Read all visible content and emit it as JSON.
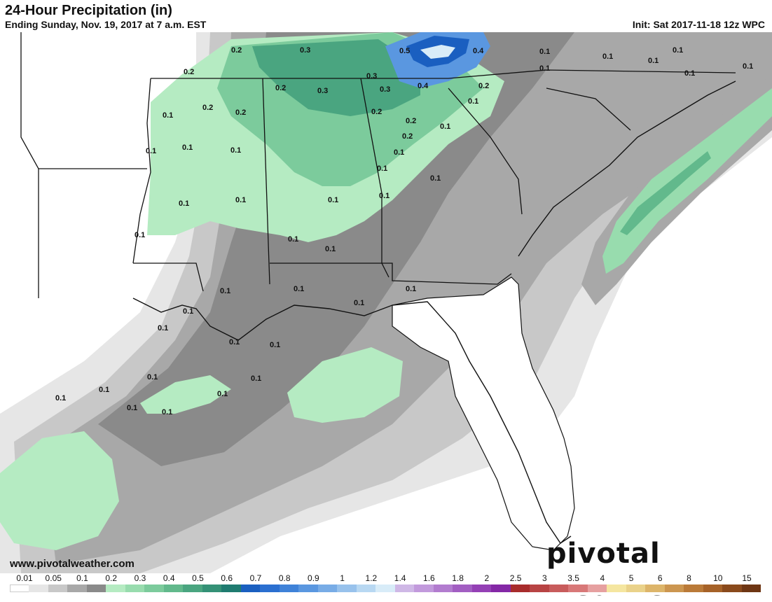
{
  "header": {
    "title": "24-Hour Precipitation (in)",
    "subtitle": "Ending Sunday, Nov. 19, 2017 at 7 a.m. EST",
    "init": "Init: Sat 2017-11-18 12z WPC"
  },
  "footer": {
    "website": "www.pivotalweather.com",
    "brand": "pivotal weather"
  },
  "legend": {
    "ticks": [
      "0.01",
      "0.05",
      "0.1",
      "0.2",
      "0.3",
      "0.4",
      "0.5",
      "0.6",
      "0.7",
      "0.8",
      "0.9",
      "1",
      "1.2",
      "1.4",
      "1.6",
      "1.8",
      "2",
      "2.5",
      "3",
      "3.5",
      "4",
      "5",
      "6",
      "8",
      "10",
      "15"
    ],
    "colors": [
      "#ffffff",
      "#e6e6e6",
      "#c8c8c8",
      "#a8a8a8",
      "#8a8a8a",
      "#b5ebc2",
      "#98dcae",
      "#7ccb9c",
      "#62b98c",
      "#4aa580",
      "#349176",
      "#1f7b70",
      "#1a5fc0",
      "#2b6fd0",
      "#3f82d8",
      "#5a97e0",
      "#78ace6",
      "#98c2ec",
      "#b8d8f2",
      "#d8ecf8",
      "#cfb8e6",
      "#c29adc",
      "#b27ccf",
      "#a25ec2",
      "#9440b5",
      "#8428a6",
      "#a82c2c",
      "#b84444",
      "#c85c5c",
      "#d87878",
      "#e6a0a0",
      "#f5e6a0",
      "#ead28a",
      "#ddb56a",
      "#cc9650",
      "#ba7a38",
      "#a66228",
      "#8a4a1c",
      "#6e3614"
    ]
  },
  "map_labels": [
    "0.2",
    "0.3",
    "0.5",
    "0.4",
    "0.1",
    "0.1",
    "0.1",
    "0.1",
    "0.1",
    "0.2",
    "0.3",
    "0.3",
    "0.3",
    "0.4",
    "0.2",
    "0.1",
    "0.1",
    "0.2",
    "0.2",
    "0.2",
    "0.2",
    "0.1",
    "0.1",
    "0.1",
    "0.1",
    "0.2",
    "0.2",
    "0.1",
    "0.1",
    "0.1",
    "0.1",
    "0.1",
    "0.1",
    "0.1",
    "0.1",
    "0.1",
    "0.1",
    "0.1",
    "0.1",
    "0.1",
    "0.1",
    "0.1",
    "0.1",
    "0.1",
    "0.1",
    "0.1",
    "0.1",
    "0.1",
    "0.1",
    "0.1",
    "0.1",
    "0.1",
    "0.1",
    "0.1"
  ],
  "colors": {
    "water_gray": "#c8c8c8",
    "green_light": "#b5ebc2",
    "green_mid": "#7ccb9c",
    "blue_max": "#1a5fc0"
  }
}
